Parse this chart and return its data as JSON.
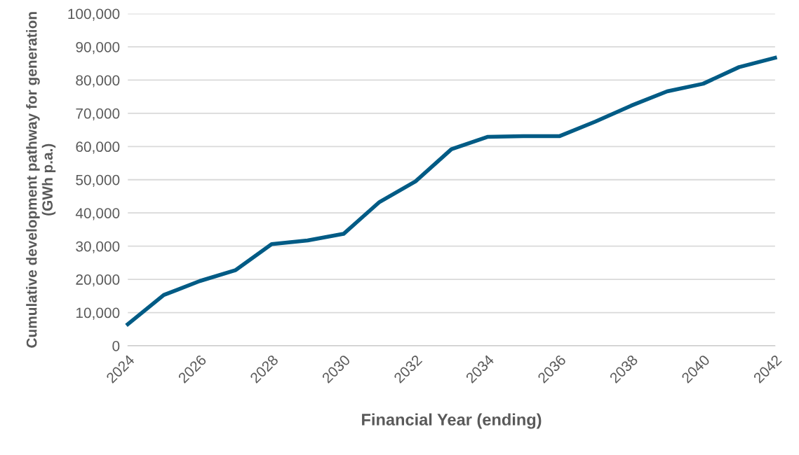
{
  "chart_data": {
    "type": "line",
    "xlabel": "Financial Year (ending)",
    "ylabel": "Cumulative development pathway for generation\n(GWh p.a.)",
    "x": [
      2024,
      2025,
      2026,
      2027,
      2028,
      2029,
      2030,
      2031,
      2032,
      2033,
      2034,
      2035,
      2036,
      2037,
      2038,
      2039,
      2040,
      2041,
      2042
    ],
    "series": [
      {
        "color": "#005b85",
        "values": [
          6500,
          15300,
          19500,
          22800,
          30600,
          31700,
          33700,
          43300,
          49500,
          59200,
          62900,
          63100,
          63100,
          67500,
          72300,
          76600,
          78900,
          83900,
          86700
        ]
      }
    ],
    "xlim": [
      2024,
      2042
    ],
    "xticks": [
      2024,
      2026,
      2028,
      2030,
      2032,
      2034,
      2036,
      2038,
      2040,
      2042
    ],
    "ylim": [
      0,
      100000
    ],
    "yticks": [
      {
        "value": 0,
        "label": "0"
      },
      {
        "value": 10000,
        "label": "10,000"
      },
      {
        "value": 20000,
        "label": "20,000"
      },
      {
        "value": 30000,
        "label": "30,000"
      },
      {
        "value": 40000,
        "label": "40,000"
      },
      {
        "value": 50000,
        "label": "50,000"
      },
      {
        "value": 60000,
        "label": "60,000"
      },
      {
        "value": 70000,
        "label": "70,000"
      },
      {
        "value": 80000,
        "label": "80,000"
      },
      {
        "value": 90000,
        "label": "90,000"
      },
      {
        "value": 100000,
        "label": "100,000"
      }
    ],
    "grid": "y",
    "legend": false,
    "marker": "none",
    "line_style": "solid"
  }
}
